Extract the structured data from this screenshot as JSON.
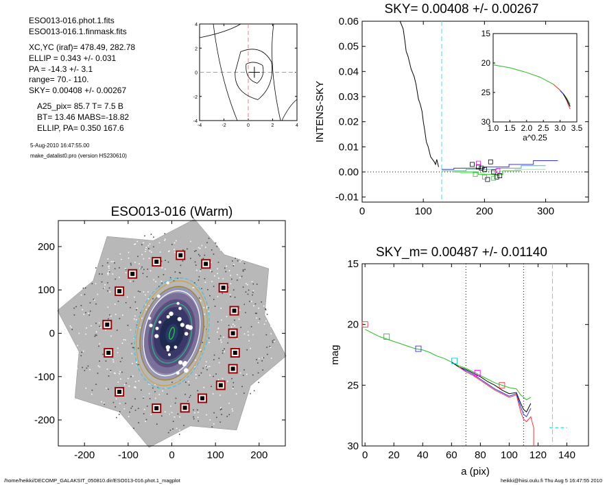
{
  "info_panel": {
    "lines": [
      "ESO013-016.phot.1.fits",
      "ESO013-016.1.finmask.fits",
      "XC,YC (iraf)=   478.49, 282.78",
      "ELLIP = 0.343 +/- 0.031",
      "PA    = -14.3 +/-   3.1",
      "range=   70.-  110.",
      "SKY= 0.00408 +/- 0.00267",
      "A25_pix= 85.7   T= 7.5  B",
      "BT=  13.46   MABS=-18.82",
      "ELLIP, PA= 0.350   167.6",
      "5-Aug-2010 16:47:55.00",
      "make_datalist0.pro (version HS230610)"
    ]
  },
  "footer": {
    "left": "/home/heikki/DECOMP_GALAKSIT_050810.dir/ESO013-016.phot.1_magplot",
    "right": "heikki@hiisi.oulu.fi  Thu Aug  5 16:47:55 2010"
  },
  "chart_data": [
    {
      "id": "center-contour",
      "type": "line",
      "title": "",
      "xlim": [
        -4,
        4
      ],
      "ylim": [
        -4,
        4
      ],
      "xticks": [
        "-4",
        "-2",
        "0",
        "2",
        "4"
      ],
      "yticks": [
        "-4",
        "-2",
        "0",
        "2",
        "4"
      ],
      "reference_lines": {
        "x": 0,
        "y": 0,
        "color": "#e88080"
      },
      "center_marker": [
        0.5,
        0
      ]
    },
    {
      "id": "sky-profile",
      "type": "line",
      "title": "SKY= 0.00408 +/- 0.00267",
      "xlabel": "",
      "ylabel": "INTENS-SKY",
      "xlim": [
        0,
        370
      ],
      "ylim": [
        -0.012,
        0.06
      ],
      "xticks": [
        "0",
        "100",
        "200",
        "300"
      ],
      "yticks": [
        "-0.01",
        "0.00",
        "0.01",
        "0.02",
        "0.03",
        "0.04",
        "0.05",
        "0.06"
      ],
      "sky_radius": 130,
      "colors": {
        "sky_line": "#40e0f0",
        "blue": "#3030ff",
        "green": "#20c020",
        "lightgreen": "#90ee90",
        "cyan": "#20c0e0"
      },
      "series": [
        {
          "color": "#000000",
          "x": [
            62,
            67,
            70,
            72,
            75,
            80,
            85,
            88,
            92,
            95,
            98,
            100,
            102,
            105,
            108,
            110,
            112,
            115,
            118,
            120,
            122,
            125
          ],
          "y": [
            0.06,
            0.057,
            0.052,
            0.048,
            0.046,
            0.041,
            0.038,
            0.035,
            0.029,
            0.027,
            0.024,
            0.02,
            0.017,
            0.012,
            0.01,
            0.008,
            0.006,
            0.005,
            0.004,
            0.003,
            0.005,
            0.002
          ]
        },
        {
          "color": "#3030ff",
          "x": [
            130,
            150,
            150,
            200,
            200,
            240,
            240,
            280,
            280,
            320
          ],
          "y": [
            0.001,
            0.001,
            0.0015,
            0.0015,
            0.002,
            0.002,
            0.003,
            0.003,
            0.0045,
            0.0045
          ]
        },
        {
          "color": "#20c0e0",
          "x": [
            130,
            170,
            170,
            220,
            220,
            260,
            260,
            300
          ],
          "y": [
            0.0005,
            0.0005,
            0.001,
            0.001,
            0.0015,
            0.0015,
            0.0025,
            0.0025
          ]
        },
        {
          "color": "#20c020",
          "x": [
            150,
            190,
            190,
            230,
            230,
            260
          ],
          "y": [
            0.0,
            0.0,
            -0.001,
            -0.001,
            0.0005,
            0.0005
          ]
        },
        {
          "color": "#90ee90",
          "x": [
            160,
            200,
            200,
            250,
            250,
            300
          ],
          "y": [
            -0.0005,
            -0.0005,
            0.0003,
            0.0003,
            0.001,
            0.001
          ]
        }
      ],
      "squares": [
        {
          "x": 180,
          "y": 0.003,
          "c": "#000000"
        },
        {
          "x": 190,
          "y": 0.002,
          "c": "#000000"
        },
        {
          "x": 200,
          "y": 0.001,
          "c": "#000000"
        },
        {
          "x": 210,
          "y": 0.004,
          "c": "#000000"
        },
        {
          "x": 215,
          "y": 0.0,
          "c": "#000000"
        },
        {
          "x": 220,
          "y": -0.002,
          "c": "#000000"
        },
        {
          "x": 225,
          "y": -0.0015,
          "c": "#000000"
        },
        {
          "x": 205,
          "y": -0.003,
          "c": "#000000"
        },
        {
          "x": 195,
          "y": 0.0015,
          "c": "#000000"
        },
        {
          "x": 185,
          "y": -0.001,
          "c": "#20c020"
        },
        {
          "x": 200,
          "y": -0.002,
          "c": "#20c020"
        },
        {
          "x": 215,
          "y": -0.0025,
          "c": "#20c020"
        },
        {
          "x": 190,
          "y": 0.0035,
          "c": "#ff00ff"
        },
        {
          "x": 222,
          "y": 0.0005,
          "c": "#ff00ff"
        }
      ]
    },
    {
      "id": "inset-profile",
      "type": "line",
      "title": "",
      "xlabel": "a^0.25",
      "xlim": [
        1.0,
        3.5
      ],
      "ylim": [
        15,
        30
      ],
      "xticks": [
        "1.0",
        "1.5",
        "2.0",
        "2.5",
        "3.0",
        "3.5"
      ],
      "yticks": [
        "15",
        "20",
        "25",
        "30"
      ],
      "series": [
        {
          "color": "#20c020",
          "x": [
            1.0,
            1.5,
            2.0,
            2.4,
            2.8,
            3.0,
            3.1,
            3.2,
            3.25,
            3.3
          ],
          "y": [
            20.3,
            20.8,
            21.6,
            22.4,
            23.6,
            24.6,
            25.2,
            26.0,
            26.5,
            27.0
          ]
        },
        {
          "color": "#ff3030",
          "x": [
            2.8,
            3.0,
            3.1,
            3.2,
            3.25,
            3.3
          ],
          "y": [
            23.6,
            24.6,
            25.3,
            26.4,
            27.2,
            27.8
          ]
        },
        {
          "color": "#3030ff",
          "x": [
            3.0,
            3.1,
            3.2,
            3.25,
            3.3
          ],
          "y": [
            24.7,
            25.3,
            26.2,
            26.8,
            27.3
          ]
        },
        {
          "color": "#000000",
          "x": [
            3.1,
            3.2,
            3.3
          ],
          "y": [
            25.3,
            26.2,
            27.4
          ]
        }
      ]
    },
    {
      "id": "galaxy-image",
      "type": "scatter",
      "title": "ESO013-016 (Warm)",
      "xlim": [
        -260,
        260
      ],
      "ylim": [
        -260,
        260
      ],
      "xticks": [
        "-200",
        "-100",
        "0",
        "100",
        "200"
      ],
      "yticks": [
        "-200",
        "-100",
        "0",
        "100",
        "200"
      ],
      "sky_boxes": [
        [
          20,
          180
        ],
        [
          -35,
          165
        ],
        [
          -90,
          137
        ],
        [
          -120,
          97
        ],
        [
          -148,
          20
        ],
        [
          -145,
          -45
        ],
        [
          -120,
          -135
        ],
        [
          -35,
          -173
        ],
        [
          30,
          -172
        ],
        [
          70,
          -150
        ],
        [
          112,
          -120
        ],
        [
          140,
          -82
        ],
        [
          145,
          -45
        ],
        [
          140,
          0
        ],
        [
          143,
          52
        ],
        [
          118,
          105
        ],
        [
          78,
          160
        ]
      ],
      "ellipses": [
        {
          "a": 130,
          "b": 82,
          "pa": -14,
          "color": "#40c0e0",
          "dash": true
        },
        {
          "a": 123,
          "b": 78,
          "pa": -14,
          "color": "#d0a040",
          "dash": false
        },
        {
          "a": 110,
          "b": 70,
          "pa": -14,
          "color": "#a08020",
          "dash": false
        },
        {
          "a": 100,
          "b": 62,
          "pa": -14,
          "color": "#ffffff",
          "dash": false
        },
        {
          "a": 70,
          "b": 44,
          "pa": -14,
          "color": "#20c080",
          "dash": false
        },
        {
          "a": 14,
          "b": 5,
          "pa": -14,
          "color": "#20e020",
          "dash": false
        }
      ]
    },
    {
      "id": "mag-profile",
      "type": "line",
      "title": "SKY_m=  0.00487 +/- 0.01140",
      "xlabel": "a (pix)",
      "ylabel": "mag",
      "xlim": [
        -2,
        155
      ],
      "ylim": [
        30,
        15
      ],
      "xticks": [
        "0",
        "20",
        "40",
        "60",
        "80",
        "100",
        "120",
        "140"
      ],
      "yticks": [
        "15",
        "20",
        "25",
        "30"
      ],
      "vlines": [
        {
          "x": 70,
          "color": "#000000"
        },
        {
          "x": 110,
          "color": "#000000"
        },
        {
          "x": 130,
          "color": "#40e0f0"
        }
      ],
      "sky_segment": {
        "x": [
          128,
          140
        ],
        "y": 28.5,
        "color": "#40e0f0"
      },
      "series": [
        {
          "color": "#20c020",
          "x": [
            0,
            5,
            10,
            15,
            20,
            25,
            30,
            35,
            40,
            45,
            50,
            55,
            60,
            65,
            70,
            75,
            80,
            85,
            90,
            95,
            100,
            105,
            108,
            110,
            112,
            115
          ],
          "y": [
            20.4,
            20.7,
            21.0,
            21.2,
            21.4,
            21.6,
            21.8,
            22.0,
            22.1,
            22.3,
            22.6,
            22.8,
            23.1,
            23.4,
            23.6,
            23.9,
            24.2,
            24.5,
            24.8,
            25.0,
            25.2,
            25.3,
            25.8,
            26.0,
            26.2,
            26.0
          ]
        },
        {
          "color": "#000000",
          "x": [
            60,
            65,
            70,
            75,
            80,
            85,
            90,
            95,
            100,
            105,
            108,
            110,
            112,
            115
          ],
          "y": [
            23.1,
            23.5,
            23.7,
            24.0,
            24.3,
            24.7,
            25.0,
            25.4,
            25.7,
            25.6,
            26.5,
            27.0,
            27.2,
            26.5
          ]
        },
        {
          "color": "#3030ff",
          "x": [
            65,
            70,
            75,
            80,
            85,
            90,
            95,
            100,
            105,
            108,
            110,
            112,
            115
          ],
          "y": [
            23.5,
            23.8,
            24.1,
            24.5,
            24.9,
            25.3,
            25.6,
            25.9,
            25.7,
            26.8,
            27.4,
            27.6,
            26.9
          ]
        },
        {
          "color": "#ff3030",
          "x": [
            65,
            70,
            75,
            80,
            85,
            90,
            95,
            100,
            105,
            108,
            110,
            112,
            115,
            117,
            117
          ],
          "y": [
            23.5,
            23.9,
            24.2,
            24.6,
            25.0,
            25.4,
            25.7,
            26.0,
            25.8,
            27.2,
            27.8,
            28.0,
            27.6,
            28.5,
            30
          ]
        }
      ],
      "squares": [
        {
          "x": 0,
          "y": 20.0,
          "c": "#ff3030"
        },
        {
          "x": 15,
          "y": 21.0,
          "c": "#20c020"
        },
        {
          "x": 37,
          "y": 22.0,
          "c": "#3030ff"
        },
        {
          "x": 62,
          "y": 23.0,
          "c": "#20c0e0"
        },
        {
          "x": 78,
          "y": 24.0,
          "c": "#ff00ff"
        },
        {
          "x": 95,
          "y": 25.0,
          "c": "#ff3030"
        }
      ]
    }
  ]
}
